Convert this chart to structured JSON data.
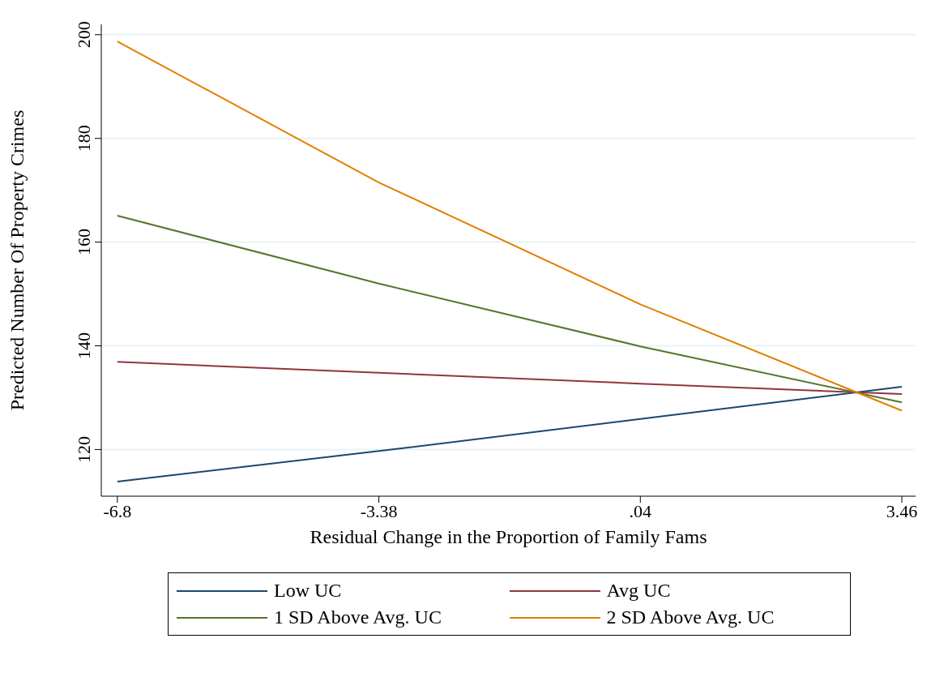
{
  "chart_data": {
    "type": "line",
    "xlabel": "Residual Change in the Proportion of Family Fams",
    "ylabel": "Predicted Number Of Property Crimes",
    "x": [
      -6.8,
      -3.38,
      0.04,
      3.46
    ],
    "series": [
      {
        "name": "Low UC",
        "color": "#1a476f",
        "values": [
          113.8,
          119.7,
          125.9,
          132.1
        ]
      },
      {
        "name": "Avg UC",
        "color": "#90353b",
        "values": [
          136.9,
          134.8,
          132.7,
          130.7
        ]
      },
      {
        "name": "1 SD Above Avg. UC",
        "color": "#55752f",
        "values": [
          165.1,
          152,
          139.9,
          129.1
        ]
      },
      {
        "name": "2 SD Above Avg. UC",
        "color": "#e37e00",
        "values": [
          198.7,
          171.5,
          148,
          127.5
        ]
      }
    ],
    "xlim": [
      -7.01,
      3.64
    ],
    "xticks": [
      -6.8,
      -3.38,
      {
        "value": 0.04,
        "label": ".04"
      },
      3.46
    ],
    "ylim": [
      111,
      202
    ],
    "yticks": [
      120,
      140,
      160,
      180,
      200
    ],
    "grid": "y",
    "legend": "bottom",
    "marker": "none",
    "line_style": "solid"
  }
}
